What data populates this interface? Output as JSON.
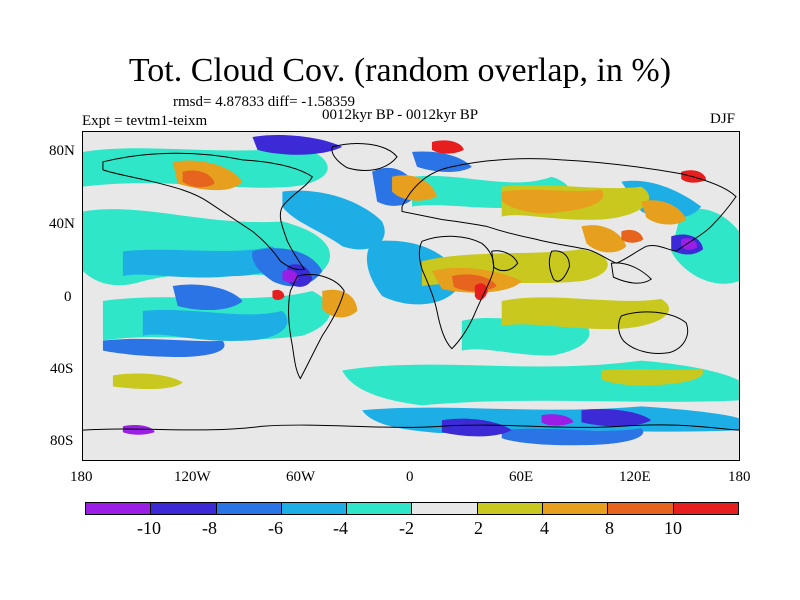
{
  "title": "Tot. Cloud Cov. (random overlap, in %)",
  "stats": "rmsd= 4.87833 diff= -1.58359",
  "period": "0012kyr BP - 0012kyr BP",
  "expt": "Expt = tevtm1-teixm",
  "season": "DJF",
  "map": {
    "projection": "cylindrical equidistant",
    "lat_labels": [
      "80N",
      "40N",
      "0",
      "40S",
      "80S"
    ],
    "lon_labels": [
      "180",
      "120W",
      "60W",
      "0",
      "60E",
      "120E",
      "180"
    ],
    "colors": {
      "lt_-10": "#9b1ee6",
      "-10_-8": "#3c2ad6",
      "-8_-6": "#2a74e6",
      "-6_-4": "#1eaee6",
      "-4_-2": "#30e6c8",
      "-2_2": "#e8e8e8",
      "2_4": "#c8c81e",
      "4_8": "#e6a01e",
      "8_10": "#e6641e",
      "gt_10": "#e61e1e"
    }
  },
  "colorbar": {
    "colors": [
      "#9b1ee6",
      "#3c2ad6",
      "#2a74e6",
      "#1eaee6",
      "#30e6c8",
      "#e8e8e8",
      "#c8c81e",
      "#e6a01e",
      "#e6641e",
      "#e61e1e"
    ],
    "labels": [
      "-10",
      "-8",
      "-6",
      "-4",
      "-2",
      "2",
      "4",
      "8",
      "10"
    ]
  }
}
